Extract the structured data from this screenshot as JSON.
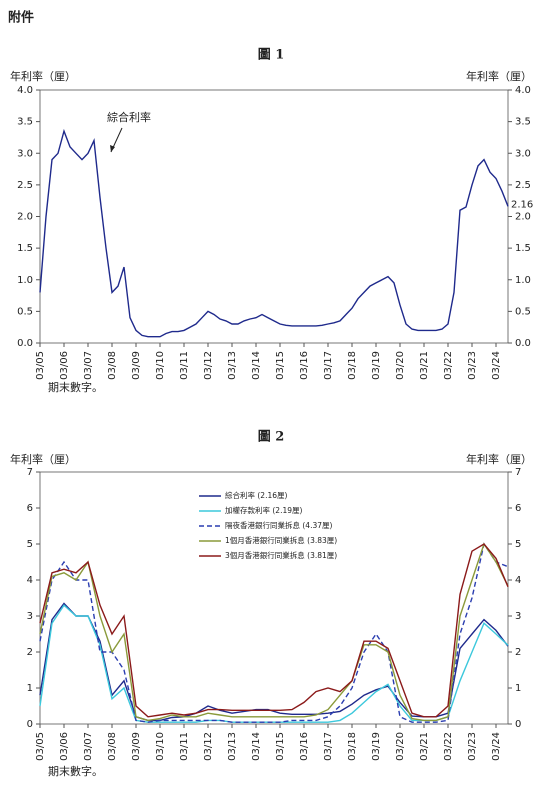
{
  "header": {
    "title": "附件"
  },
  "chart_data": [
    {
      "type": "line",
      "title": "圖 1",
      "y_label": "年利率（厘）",
      "y2_label": "年利率（厘）",
      "footnote": "期末數字。",
      "annotation": "綜合利率",
      "x": [
        "03/05",
        "06/05",
        "09/05",
        "12/05",
        "03/06",
        "06/06",
        "09/06",
        "12/06",
        "03/07",
        "06/07",
        "09/07",
        "12/07",
        "03/08",
        "06/08",
        "09/08",
        "12/08",
        "03/09",
        "06/09",
        "09/09",
        "12/09",
        "03/10",
        "06/10",
        "09/10",
        "12/10",
        "03/11",
        "06/11",
        "09/11",
        "12/11",
        "03/12",
        "06/12",
        "09/12",
        "12/12",
        "03/13",
        "06/13",
        "09/13",
        "12/13",
        "03/14",
        "06/14",
        "09/14",
        "12/14",
        "03/15",
        "06/15",
        "09/15",
        "12/15",
        "03/16",
        "06/16",
        "09/16",
        "12/16",
        "03/17",
        "06/17",
        "09/17",
        "12/17",
        "03/18",
        "06/18",
        "09/18",
        "12/18",
        "03/19",
        "06/19",
        "09/19",
        "12/19",
        "03/20",
        "06/20",
        "09/20",
        "12/20",
        "03/21",
        "06/21",
        "09/21",
        "12/21",
        "03/22",
        "06/22",
        "09/22",
        "12/22",
        "03/23",
        "06/23",
        "09/23",
        "12/23",
        "03/24",
        "06/24",
        "09/24"
      ],
      "xticks": [
        "03/05",
        "03/06",
        "03/07",
        "03/08",
        "03/09",
        "03/10",
        "03/11",
        "03/12",
        "03/13",
        "03/14",
        "03/15",
        "03/16",
        "03/17",
        "03/18",
        "03/19",
        "03/20",
        "03/21",
        "03/22",
        "03/23",
        "03/24"
      ],
      "series": [
        {
          "name": "綜合利率",
          "color": "#1f2a8c",
          "values": [
            0.8,
            2.0,
            2.9,
            3.0,
            3.35,
            3.1,
            3.0,
            2.9,
            3.0,
            3.2,
            2.3,
            1.5,
            0.8,
            0.9,
            1.2,
            0.4,
            0.2,
            0.12,
            0.1,
            0.1,
            0.1,
            0.15,
            0.18,
            0.18,
            0.2,
            0.25,
            0.3,
            0.4,
            0.5,
            0.45,
            0.38,
            0.35,
            0.3,
            0.3,
            0.35,
            0.38,
            0.4,
            0.45,
            0.4,
            0.35,
            0.3,
            0.28,
            0.27,
            0.27,
            0.27,
            0.27,
            0.27,
            0.28,
            0.3,
            0.32,
            0.35,
            0.45,
            0.55,
            0.7,
            0.8,
            0.9,
            0.95,
            1.0,
            1.05,
            0.95,
            0.6,
            0.3,
            0.22,
            0.2,
            0.2,
            0.2,
            0.2,
            0.22,
            0.3,
            0.8,
            2.1,
            2.15,
            2.5,
            2.8,
            2.9,
            2.7,
            2.6,
            2.4,
            2.16
          ]
        }
      ],
      "ylim": [
        0,
        4
      ],
      "yticks": [
        {
          "value": 0,
          "label": "0.0"
        },
        0.5,
        {
          "value": 1,
          "label": "1.0"
        },
        1.5,
        {
          "value": 2,
          "label": "2.0"
        },
        2.5,
        {
          "value": 3,
          "label": "3.0"
        },
        3.5,
        {
          "value": 4,
          "label": "4.0"
        }
      ],
      "y2lim": [
        0,
        4
      ],
      "y2ticks": [
        {
          "value": 0,
          "label": "0.0"
        },
        0.5,
        {
          "value": 1,
          "label": "1.0"
        },
        1.5,
        {
          "value": 2,
          "label": "2.0"
        },
        2.5,
        {
          "value": 3,
          "label": "3.0"
        },
        3.5,
        {
          "value": 4,
          "label": "4.0"
        }
      ],
      "end_label": true
    },
    {
      "type": "line",
      "title": "圖 2",
      "y_label": "年利率（厘）",
      "y2_label": "年利率（厘）",
      "footnote": "期末數字。",
      "x": [
        "03/05",
        "09/05",
        "03/06",
        "09/06",
        "03/07",
        "09/07",
        "03/08",
        "09/08",
        "03/09",
        "09/09",
        "03/10",
        "09/10",
        "03/11",
        "09/11",
        "03/12",
        "09/12",
        "03/13",
        "09/13",
        "03/14",
        "09/14",
        "03/15",
        "09/15",
        "03/16",
        "09/16",
        "03/17",
        "09/17",
        "03/18",
        "09/18",
        "03/19",
        "09/19",
        "03/20",
        "09/20",
        "03/21",
        "09/21",
        "03/22",
        "09/22",
        "03/23",
        "09/23",
        "03/24",
        "09/24"
      ],
      "xticks": [
        "03/05",
        "03/06",
        "03/07",
        "03/08",
        "03/09",
        "03/10",
        "03/11",
        "03/12",
        "03/13",
        "03/14",
        "03/15",
        "03/16",
        "03/17",
        "03/18",
        "03/19",
        "03/20",
        "03/21",
        "03/22",
        "03/23",
        "03/24"
      ],
      "legend": "upper-center",
      "series": [
        {
          "name": "綜合利率 (2.16厘)",
          "color": "#1f2a8c",
          "values": [
            0.8,
            2.9,
            3.35,
            3.0,
            3.0,
            2.3,
            0.8,
            1.2,
            0.2,
            0.1,
            0.1,
            0.18,
            0.2,
            0.3,
            0.5,
            0.38,
            0.3,
            0.35,
            0.4,
            0.4,
            0.3,
            0.27,
            0.27,
            0.27,
            0.3,
            0.35,
            0.55,
            0.8,
            0.95,
            1.05,
            0.6,
            0.22,
            0.2,
            0.2,
            0.3,
            2.1,
            2.5,
            2.9,
            2.6,
            2.16
          ]
        },
        {
          "name": "加權存款利率 (2.19厘)",
          "color": "#3cc8dc",
          "values": [
            0.5,
            2.8,
            3.3,
            3.0,
            3.0,
            2.2,
            0.7,
            1.0,
            0.1,
            0.05,
            0.05,
            0.05,
            0.05,
            0.05,
            0.1,
            0.1,
            0.05,
            0.05,
            0.05,
            0.05,
            0.05,
            0.05,
            0.05,
            0.05,
            0.05,
            0.1,
            0.3,
            0.6,
            0.9,
            1.1,
            0.5,
            0.1,
            0.1,
            0.1,
            0.2,
            1.2,
            2.0,
            2.8,
            2.5,
            2.19
          ]
        },
        {
          "name": "隔夜香港銀行同業拆息 (4.37厘)",
          "color": "#2a3db0",
          "dashed": true,
          "values": [
            2.3,
            4.0,
            4.5,
            4.0,
            4.0,
            2.0,
            2.0,
            1.5,
            0.1,
            0.05,
            0.1,
            0.1,
            0.1,
            0.1,
            0.1,
            0.1,
            0.05,
            0.05,
            0.05,
            0.05,
            0.05,
            0.1,
            0.1,
            0.1,
            0.2,
            0.5,
            1.0,
            2.0,
            2.5,
            2.0,
            0.2,
            0.05,
            0.05,
            0.05,
            0.1,
            2.5,
            3.5,
            5.0,
            4.5,
            4.37
          ]
        },
        {
          "name": "1個月香港銀行同業拆息 (3.83厘)",
          "color": "#8a9a3a",
          "values": [
            2.5,
            4.1,
            4.2,
            4.0,
            4.5,
            3.0,
            2.0,
            2.5,
            0.2,
            0.1,
            0.15,
            0.25,
            0.2,
            0.2,
            0.3,
            0.25,
            0.2,
            0.2,
            0.2,
            0.2,
            0.2,
            0.2,
            0.2,
            0.25,
            0.4,
            0.8,
            1.2,
            2.2,
            2.2,
            2.0,
            0.8,
            0.15,
            0.1,
            0.1,
            0.2,
            3.0,
            4.0,
            5.0,
            4.5,
            3.83
          ]
        },
        {
          "name": "3個月香港銀行同業拆息 (3.81厘)",
          "color": "#8b1a1a",
          "values": [
            2.8,
            4.2,
            4.3,
            4.2,
            4.5,
            3.3,
            2.5,
            3.0,
            0.5,
            0.2,
            0.25,
            0.3,
            0.25,
            0.3,
            0.4,
            0.4,
            0.38,
            0.38,
            0.38,
            0.38,
            0.38,
            0.4,
            0.6,
            0.9,
            1.0,
            0.9,
            1.2,
            2.3,
            2.3,
            2.1,
            1.2,
            0.3,
            0.2,
            0.2,
            0.5,
            3.6,
            4.8,
            5.0,
            4.6,
            3.81
          ]
        }
      ],
      "ylim": [
        0,
        7
      ],
      "yticks": [
        0,
        1,
        2,
        3,
        4,
        5,
        6,
        7
      ],
      "y2lim": [
        0,
        7
      ],
      "y2ticks": [
        0,
        1,
        2,
        3,
        4,
        5,
        6,
        7
      ]
    }
  ]
}
